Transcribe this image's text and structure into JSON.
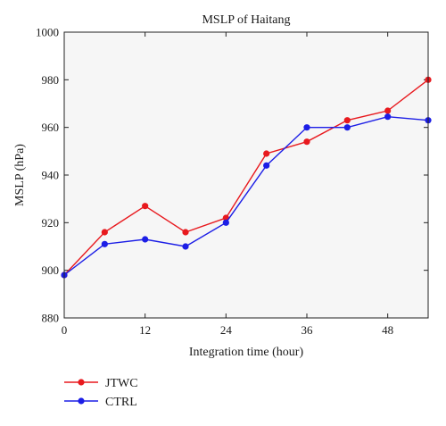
{
  "chart_data": {
    "type": "line",
    "title": "MSLP of Haitang",
    "xlabel": "Integration time (hour)",
    "ylabel": "MSLP (hPa)",
    "xlim": [
      0,
      54
    ],
    "ylim": [
      880,
      1000
    ],
    "xticks": [
      0,
      12,
      24,
      36,
      48
    ],
    "yticks": [
      880,
      900,
      920,
      940,
      960,
      980,
      1000
    ],
    "x": [
      0,
      6,
      12,
      18,
      24,
      30,
      36,
      42,
      48,
      54
    ],
    "series": [
      {
        "name": "JTWC",
        "color": "#e8191e",
        "values": [
          898,
          916,
          927,
          916,
          922,
          949,
          954,
          963,
          967,
          980
        ]
      },
      {
        "name": "CTRL",
        "color": "#1c1ee6",
        "values": [
          898,
          911,
          913,
          910,
          920,
          944,
          960,
          960,
          964.5,
          963
        ]
      }
    ],
    "legend_position": "bottom-left",
    "grid": false
  }
}
